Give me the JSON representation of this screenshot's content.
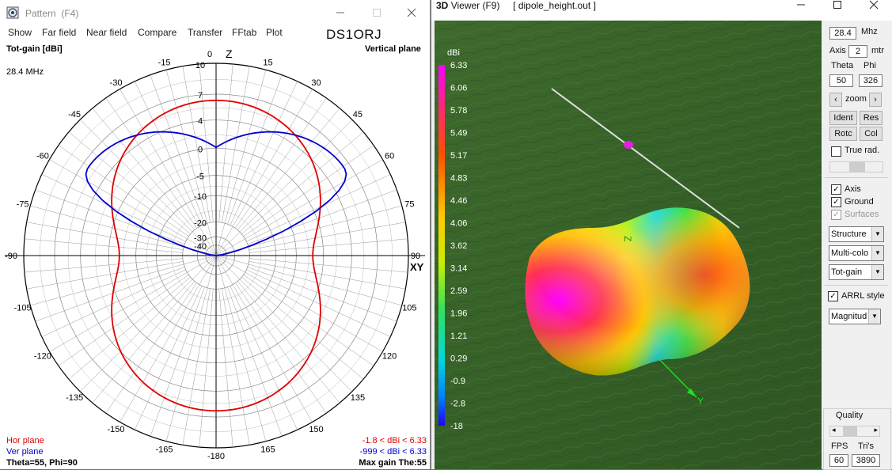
{
  "pattern": {
    "title": "Pattern",
    "shortcut": "(F4)",
    "menu": [
      "Show",
      "Far field",
      "Near field",
      "Compare",
      "Transfer",
      "FFtab",
      "Plot"
    ],
    "callsign": "DS1ORJ",
    "chart_data": {
      "type": "polar",
      "title": "Tot-gain [dBi]",
      "plane": "Vertical plane",
      "frequency": "28.4 MHz",
      "radial_ticks": [
        {
          "label": "10",
          "db": 10
        },
        {
          "label": "7",
          "db": 7
        },
        {
          "label": "4",
          "db": 4
        },
        {
          "label": "0",
          "db": 0
        },
        {
          "label": "-5",
          "db": -5
        },
        {
          "label": "-10",
          "db": -10
        },
        {
          "label": "-20",
          "db": -20
        },
        {
          "label": "-30",
          "db": -30
        },
        {
          "label": "-40",
          "db": -40
        }
      ],
      "angle_labels": [
        "0",
        "15",
        "30",
        "45",
        "60",
        "75",
        "90",
        "105",
        "120",
        "135",
        "150",
        "165",
        "-180",
        "-165",
        "-150",
        "-135",
        "-120",
        "-105",
        "-90",
        "-75",
        "-60",
        "-45",
        "-30",
        "-15"
      ],
      "z_label": "Z",
      "xy_label": "XY",
      "series": [
        {
          "name": "Hor plane",
          "color": "#e00000",
          "range": "-1.8 < dBi < 6.33",
          "shape": "dipole-broadside",
          "max_db": 6.33,
          "min_db": -1.8
        },
        {
          "name": "Ver plane",
          "color": "#0000d0",
          "range": "-999 < dBi < 6.33",
          "shape": "elevation",
          "max_db": 6.33,
          "peak_theta_deg": 55,
          "min_db": -999
        }
      ],
      "footer_left": "Theta=55, Phi=90",
      "footer_right": "Max gain The:55"
    }
  },
  "viewer": {
    "title_prefix": "3D",
    "title_main": "Viewer (F9)",
    "filename": "[  dipole_height.out ]",
    "legend": {
      "unit": "dBi",
      "values": [
        "6.33",
        "6.06",
        "5.78",
        "5.49",
        "5.17",
        "4.83",
        "4.46",
        "4.06",
        "3.62",
        "3.14",
        "2.59",
        "1.96",
        "1.21",
        "0.29",
        "-0.9",
        "-2.8",
        "-18"
      ]
    },
    "panel": {
      "freq": "28.4",
      "freq_unit": "Mhz",
      "axis_label": "Axis",
      "axis_value": "2",
      "axis_unit": "mtr",
      "theta_label": "Theta",
      "phi_label": "Phi",
      "theta": "50",
      "phi": "326",
      "zoom_label": "zoom",
      "btn_ident": "Ident",
      "btn_res": "Res",
      "btn_rotc": "Rotc",
      "btn_col": "Col",
      "true_rad": "True rad.",
      "axis_chk": "Axis",
      "ground_chk": "Ground",
      "surfaces_chk": "Surfaces",
      "sel_structure": "Structure",
      "sel_color": "Multi-colo",
      "sel_gain": "Tot-gain",
      "arrl": "ARRL style",
      "sel_mag": "Magnitud",
      "quality": "Quality",
      "fps_label": "FPS",
      "tris_label": "Tri's",
      "fps": "60",
      "tris": "3890"
    }
  }
}
